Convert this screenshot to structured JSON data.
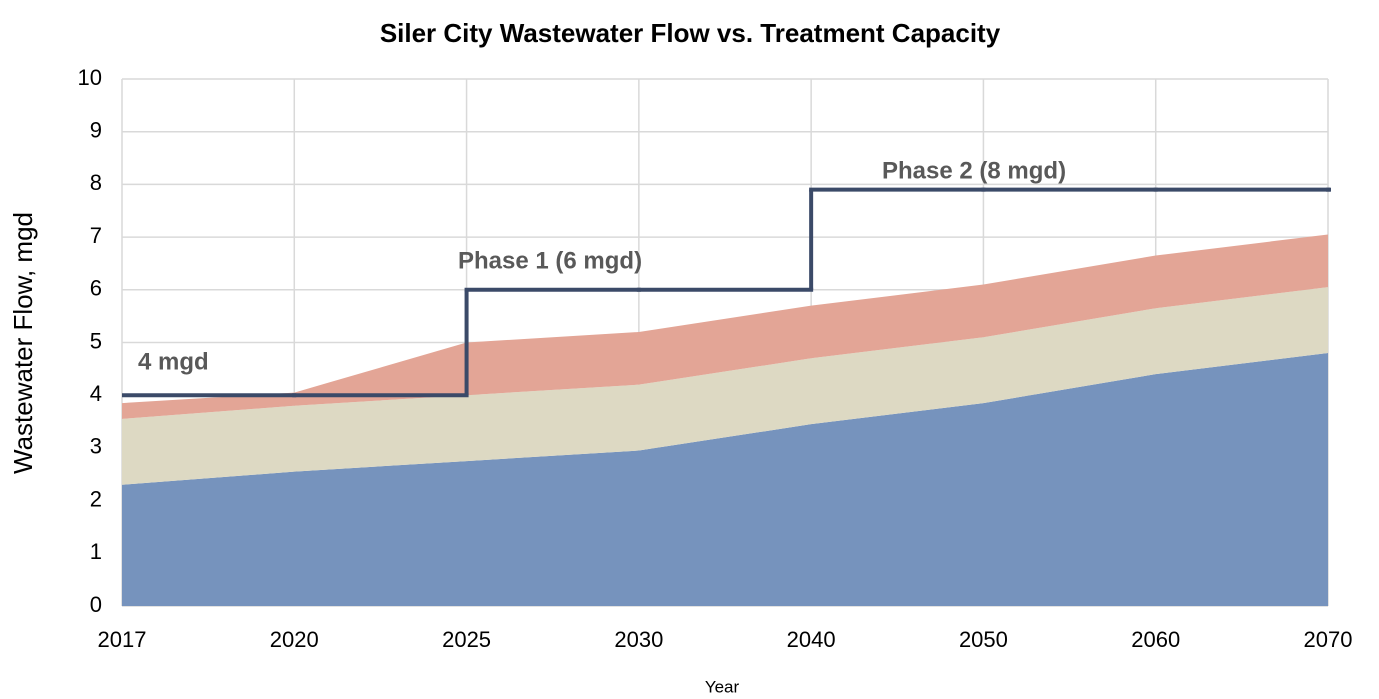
{
  "chart_data": {
    "type": "stacked_area",
    "title": "Siler City Wastewater Flow vs. Treatment Capacity",
    "x_label": "Year",
    "y_label": "Wastewater Flow, mgd",
    "categories": [
      "2017",
      "2020",
      "2025",
      "2030",
      "2040",
      "2050",
      "2060",
      "2070"
    ],
    "series": [
      {
        "color": "#7693bd",
        "values": [
          2.3,
          2.55,
          2.75,
          2.95,
          3.45,
          3.85,
          4.4,
          4.8
        ]
      },
      {
        "color": "#ddd9c3",
        "values": [
          1.25,
          1.25,
          1.25,
          1.25,
          1.25,
          1.25,
          1.25,
          1.25
        ]
      },
      {
        "color": "#e3a596",
        "values": [
          0.3,
          0.25,
          1.0,
          1.0,
          1.0,
          1.0,
          1.0,
          1.0
        ]
      }
    ],
    "capacity": {
      "type": "step",
      "step": "post",
      "color": "#3b4a68",
      "values": [
        4,
        4,
        6,
        6,
        7.9,
        7.9,
        7.9,
        7.9
      ]
    },
    "annotations": [
      "4 mgd",
      "Phase 1  (6 mgd)",
      "Phase 2  (8 mgd)"
    ],
    "ylim": [
      0,
      10
    ],
    "yticks": [
      0,
      1,
      2,
      3,
      4,
      5,
      6,
      7,
      8,
      9,
      10
    ],
    "grid": true
  }
}
